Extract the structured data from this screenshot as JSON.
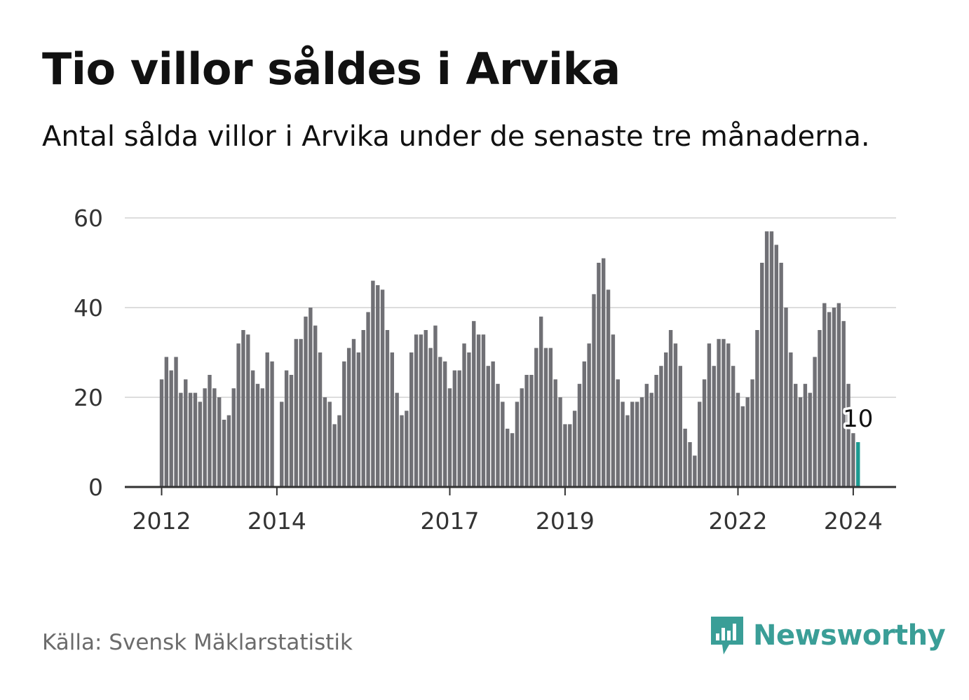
{
  "title": "Tio villor såldes i Arvika",
  "subtitle": "Antal sålda villor i Arvika under de senaste tre månaderna.",
  "source": "Källa: Svensk Mäklarstatistik",
  "brand": {
    "name": "Newsworthy",
    "icon": "bar-chart-speech-bubble-icon"
  },
  "colors": {
    "bar": "#707075",
    "highlight": "#1d9a91",
    "grid": "#dddddd",
    "axis": "#333333",
    "brand": "#3a9e97"
  },
  "chart_data": {
    "type": "bar",
    "title": "Tio villor såldes i Arvika",
    "xlabel": "",
    "ylabel": "",
    "ylim": [
      0,
      60
    ],
    "yticks": [
      "0",
      "20",
      "40",
      "60"
    ],
    "xticks": [
      {
        "label": "2012",
        "index": 0
      },
      {
        "label": "2014",
        "index": 24
      },
      {
        "label": "2017",
        "index": 60
      },
      {
        "label": "2019",
        "index": 84
      },
      {
        "label": "2022",
        "index": 120
      },
      {
        "label": "2024",
        "index": 144
      }
    ],
    "start": "2012-01",
    "frequency": "monthly",
    "values": [
      24,
      29,
      26,
      29,
      21,
      24,
      21,
      21,
      19,
      22,
      25,
      22,
      20,
      15,
      16,
      22,
      32,
      35,
      34,
      26,
      23,
      22,
      30,
      28,
      0,
      19,
      26,
      25,
      33,
      33,
      38,
      40,
      36,
      30,
      20,
      19,
      14,
      16,
      28,
      31,
      33,
      30,
      35,
      39,
      46,
      45,
      44,
      35,
      30,
      21,
      16,
      17,
      30,
      34,
      34,
      35,
      31,
      36,
      29,
      28,
      22,
      26,
      26,
      32,
      30,
      37,
      34,
      34,
      27,
      28,
      23,
      19,
      13,
      12,
      19,
      22,
      25,
      25,
      31,
      38,
      31,
      31,
      24,
      20,
      14,
      14,
      17,
      23,
      28,
      32,
      43,
      50,
      51,
      44,
      34,
      24,
      19,
      16,
      19,
      19,
      20,
      23,
      21,
      25,
      27,
      30,
      35,
      32,
      27,
      13,
      10,
      7,
      19,
      24,
      32,
      27,
      33,
      33,
      32,
      27,
      21,
      18,
      20,
      24,
      35,
      50,
      57,
      57,
      54,
      50,
      40,
      30,
      23,
      20,
      23,
      21,
      29,
      35,
      41,
      39,
      40,
      41,
      37,
      23,
      12,
      10
    ],
    "highlight_index": 145,
    "annotation": {
      "text": "10",
      "index": 145
    }
  }
}
